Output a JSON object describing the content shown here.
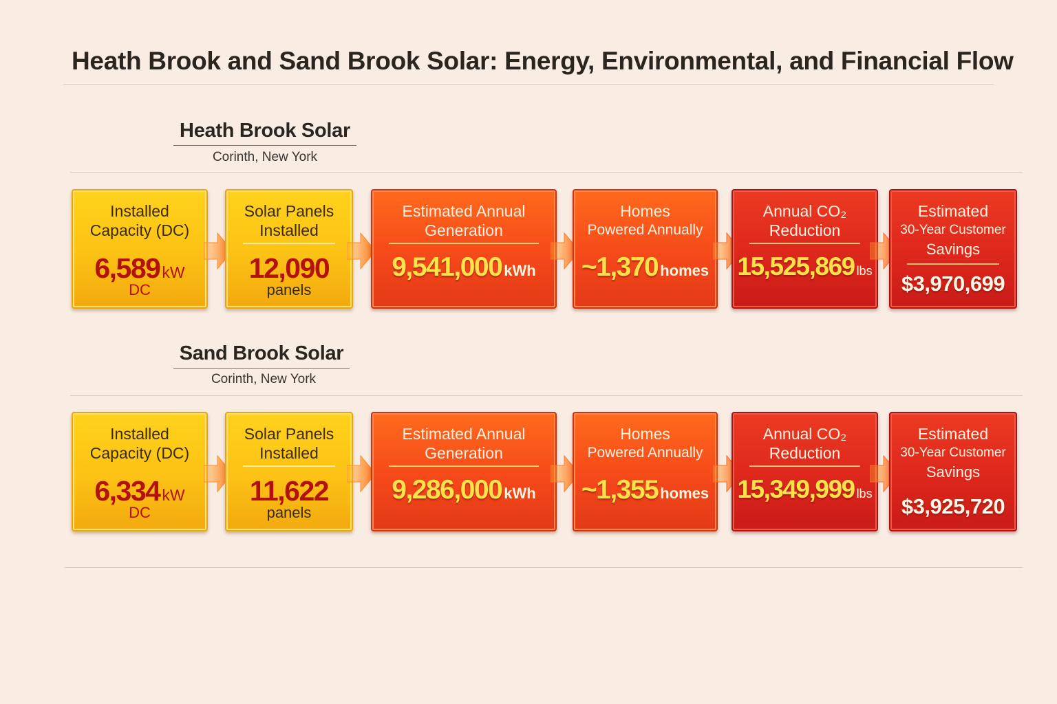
{
  "page": {
    "title": "Heath Brook and Sand Brook Solar: Energy, Environmental, and Financial Flow"
  },
  "projects": [
    {
      "name": "Heath Brook Solar",
      "location": "Corinth, New York",
      "capacity": {
        "label_1": "Installed",
        "label_2": "Capacity (DC)",
        "value": "6,589",
        "unit": "kW",
        "sub": "DC"
      },
      "panels": {
        "label_1": "Solar Panels",
        "label_2": "Installed",
        "value": "12,090",
        "sub": "panels"
      },
      "generation": {
        "label_1": "Estimated Annual",
        "label_2": "Generation",
        "value": "9,541,000",
        "unit": "kWh"
      },
      "homes": {
        "label_1": "Homes",
        "label_2": "Powered Annually",
        "value": "~1,370",
        "unit": "homes"
      },
      "co2": {
        "label_1": "Annual CO₂",
        "label_2": "Reduction",
        "value": "15,525,869",
        "unit": "lbs"
      },
      "savings": {
        "label_1": "Estimated",
        "label_2": "30-Year Customer",
        "label_3": "Savings",
        "value": "$3,970,699"
      }
    },
    {
      "name": "Sand Brook Solar",
      "location": "Corinth, New York",
      "capacity": {
        "label_1": "Installed",
        "label_2": "Capacity (DC)",
        "value": "6,334",
        "unit": "kW",
        "sub": "DC"
      },
      "panels": {
        "label_1": "Solar Panels",
        "label_2": "Installed",
        "value": "11,622",
        "sub": "panels"
      },
      "generation": {
        "label_1": "Estimated Annual",
        "label_2": "Generation",
        "value": "9,286,000",
        "unit": "kWh"
      },
      "homes": {
        "label_1": "Homes",
        "label_2": "Powered Annually",
        "value": "~1,355",
        "unit": "homes"
      },
      "co2": {
        "label_1": "Annual CO₂",
        "label_2": "Reduction",
        "value": "15,349,999",
        "unit": "lbs"
      },
      "savings": {
        "label_1": "Estimated",
        "label_2": "30-Year Customer",
        "label_3": "Savings",
        "value": "$3,925,720"
      }
    }
  ],
  "colors": {
    "background": "#f8ece3",
    "yellow_card": "#fcc215",
    "orange_card": "#f5491a",
    "red_card": "#dd271c",
    "value_red": "#b3120c",
    "value_yellow": "#ffe14a",
    "arrow": "#ff7a1a"
  },
  "icons": {
    "flow_arrow": "arrow-right-icon"
  }
}
